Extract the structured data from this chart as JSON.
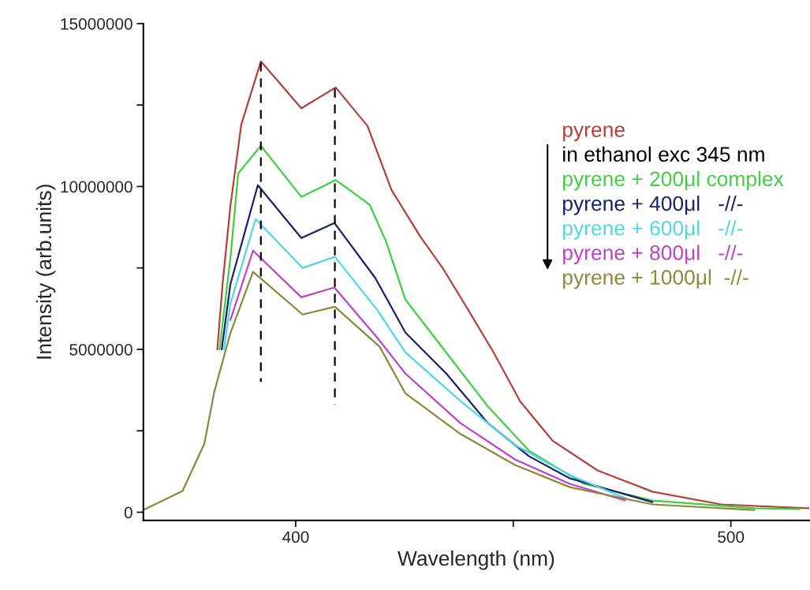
{
  "chart_data": {
    "type": "line",
    "xlabel": "Wavelength (nm)",
    "ylabel": "Intensity (arb.units)",
    "xlim": [
      365,
      518
    ],
    "xticks": [
      400,
      {
        "value": 450,
        "label": null
      },
      500
    ],
    "ylim": [
      -250000,
      15000000
    ],
    "yticks": [
      0,
      {
        "value": 2500000,
        "label": null
      },
      5000000,
      {
        "value": 7500000,
        "label": null
      },
      10000000,
      {
        "value": 12500000,
        "label": null
      },
      15000000
    ],
    "grid": false,
    "legend": "top right",
    "marker": "none",
    "line_style": "solid",
    "annotations": [
      "in ethanol exc 345 nm"
    ],
    "series": [
      {
        "name": "pyrene",
        "color": "#b5403a",
        "x": [
          382,
          383.2,
          385,
          387.5,
          392,
          401.3,
          409.2,
          416.5,
          422,
          428.6,
          434,
          439.7,
          445.5,
          451.6,
          459,
          469.4,
          482,
          497.8,
          518
        ],
        "values": [
          5000000,
          7000000,
          9400000,
          11900000,
          13840000,
          12400000,
          13040000,
          11860000,
          9900000,
          8470000,
          7450000,
          6200000,
          4900000,
          3400000,
          2200000,
          1280000,
          630000,
          240000,
          120000
        ]
      },
      {
        "name": "pyrene + 200μl complex",
        "color": "#3fcf3f",
        "x": [
          382.5,
          385,
          386.8,
          392,
          401.3,
          409.2,
          417,
          420.8,
          425.2,
          434.6,
          444.2,
          453.6,
          466.3,
          482,
          505.4,
          515.8
        ],
        "values": [
          5000000,
          7800000,
          10400000,
          11250000,
          9680000,
          10200000,
          9440000,
          8300000,
          6530000,
          4900000,
          3240000,
          1890000,
          870000,
          360000,
          120000,
          100000
        ]
      },
      {
        "name": "pyrene + 400μl   -//-",
        "color": "#1a1f6e",
        "x": [
          383,
          385,
          391.3,
          401.3,
          408.9,
          418.3,
          425.2,
          434.6,
          444.2,
          453.6,
          463,
          482
        ],
        "values": [
          5000000,
          7000000,
          10040000,
          8420000,
          8880000,
          7190000,
          5520000,
          4260000,
          2730000,
          1720000,
          1040000,
          310000
        ]
      },
      {
        "name": "pyrene + 600μl   -//-",
        "color": "#4fd6e6",
        "x": [
          383.5,
          385,
          390.8,
          401.6,
          409,
          418.8,
          425.2,
          437.9,
          450.4,
          463,
          477
        ],
        "values": [
          5000000,
          6400000,
          9000000,
          7500000,
          7840000,
          6200000,
          4910000,
          3410000,
          2060000,
          1140000,
          360000
        ]
      },
      {
        "name": "pyrene + 800μl   -//-",
        "color": "#c040c8",
        "x": [
          385,
          390.2,
          401.3,
          408.9,
          418.8,
          425.2,
          437.9,
          450.4,
          463,
          475.7
        ],
        "values": [
          5900000,
          8030000,
          6600000,
          6900000,
          5350000,
          4260000,
          2730000,
          1620000,
          870000,
          360000
        ]
      },
      {
        "name": "pyrene + 1000μl  -//-",
        "color": "#8a8a3a",
        "x": [
          365,
          374,
          379,
          381.3,
          385,
          390.2,
          401.6,
          409,
          419.3,
          425.2,
          437.9,
          450.4,
          463,
          482,
          505.4
        ],
        "values": [
          70000,
          650000,
          2100000,
          3700000,
          5500000,
          7380000,
          6070000,
          6310000,
          5080000,
          3650000,
          2400000,
          1450000,
          770000,
          240000,
          70000
        ]
      },
      {
        "color": "#000000",
        "line_style": "dashed",
        "x": [
          392,
          392
        ],
        "values": [
          13800000,
          4000000
        ]
      },
      {
        "color": "#000000",
        "line_style": "dashed",
        "x": [
          409,
          409
        ],
        "values": [
          13000000,
          3300000
        ]
      }
    ]
  }
}
